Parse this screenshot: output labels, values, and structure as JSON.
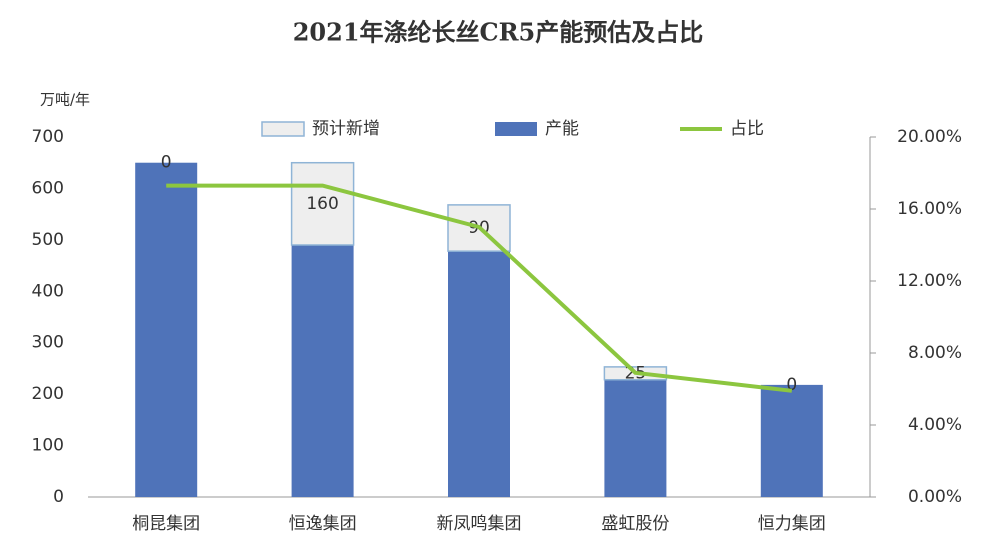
{
  "chart_data": {
    "type": "bar",
    "title": "2021年涤纶长丝CR5产能预估及占比",
    "y_label": "万吨/年",
    "categories": [
      "桐昆集团",
      "恒逸集团",
      "新凤鸣集团",
      "盛虹股份",
      "恒力集团"
    ],
    "series": [
      {
        "name": "预计新增",
        "type": "bar",
        "color": "#eeeeee",
        "stroke": "#8fb4d6",
        "values": [
          0,
          160,
          90,
          25,
          0
        ]
      },
      {
        "name": "产能",
        "type": "bar",
        "color": "#4f73b9",
        "values": [
          650,
          490,
          478,
          228,
          218
        ]
      },
      {
        "name": "占比",
        "type": "line",
        "color": "#8cc63f",
        "axis": "y2",
        "values": [
          17.3,
          17.3,
          15.0,
          6.9,
          5.9
        ]
      }
    ],
    "ylim": [
      0,
      700
    ],
    "yticks": [
      0,
      100,
      200,
      300,
      400,
      500,
      600,
      700
    ],
    "y2lim": [
      0,
      20
    ],
    "y2ticks": [
      {
        "value": 0,
        "label": "0.00%"
      },
      {
        "value": 4,
        "label": "4.00%"
      },
      {
        "value": 8,
        "label": "8.00%"
      },
      {
        "value": 12,
        "label": "12.00%"
      },
      {
        "value": 16,
        "label": "16.00%"
      },
      {
        "value": 20,
        "label": "20.00%"
      }
    ],
    "legend": "top"
  }
}
